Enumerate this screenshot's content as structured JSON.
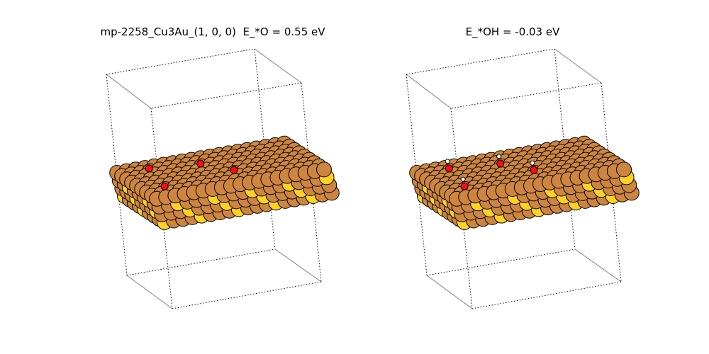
{
  "panels": [
    {
      "title": "mp-2258_Cu3Au_(1, 0, 0)  E_*O = 0.55 eV",
      "adsorbate": "O"
    },
    {
      "title": "E_*OH = -0.03 eV",
      "adsorbate": "OH"
    }
  ],
  "colors": {
    "copper": "#cd853f",
    "gold": "#ffd123",
    "oxygen": "#ff0d0d",
    "hydrogen": "#ffffff",
    "outline": "#000000",
    "cell_solid": "#808080",
    "cell_dotted": "#000000"
  }
}
